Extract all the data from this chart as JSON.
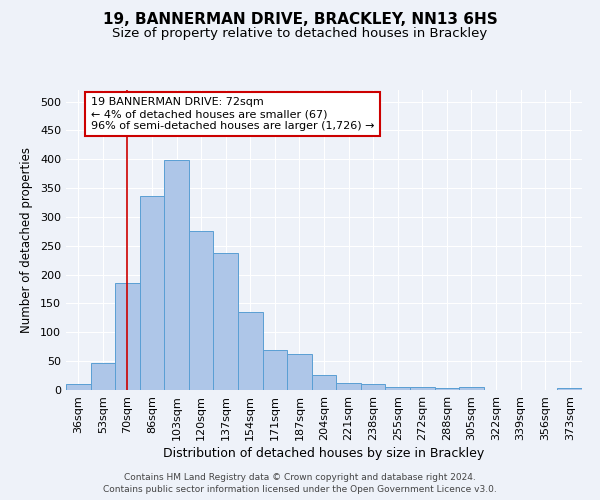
{
  "title1": "19, BANNERMAN DRIVE, BRACKLEY, NN13 6HS",
  "title2": "Size of property relative to detached houses in Brackley",
  "xlabel": "Distribution of detached houses by size in Brackley",
  "ylabel": "Number of detached properties",
  "footnote1": "Contains HM Land Registry data © Crown copyright and database right 2024.",
  "footnote2": "Contains public sector information licensed under the Open Government Licence v3.0.",
  "categories": [
    "36sqm",
    "53sqm",
    "70sqm",
    "86sqm",
    "103sqm",
    "120sqm",
    "137sqm",
    "154sqm",
    "171sqm",
    "187sqm",
    "204sqm",
    "221sqm",
    "238sqm",
    "255sqm",
    "272sqm",
    "288sqm",
    "305sqm",
    "322sqm",
    "339sqm",
    "356sqm",
    "373sqm"
  ],
  "values": [
    10,
    47,
    185,
    337,
    398,
    275,
    238,
    136,
    70,
    63,
    26,
    13,
    10,
    5,
    5,
    4,
    5,
    0,
    0,
    0,
    4
  ],
  "bar_color": "#aec6e8",
  "bar_edge_color": "#5a9fd4",
  "red_line_index": 2,
  "annotation_text": "19 BANNERMAN DRIVE: 72sqm\n← 4% of detached houses are smaller (67)\n96% of semi-detached houses are larger (1,726) →",
  "annotation_box_color": "#ffffff",
  "annotation_box_edge": "#cc0000",
  "red_line_color": "#cc0000",
  "ylim": [
    0,
    520
  ],
  "yticks": [
    0,
    50,
    100,
    150,
    200,
    250,
    300,
    350,
    400,
    450,
    500
  ],
  "bg_color": "#eef2f9",
  "grid_color": "#ffffff",
  "title1_fontsize": 11,
  "title2_fontsize": 9.5,
  "xlabel_fontsize": 9,
  "ylabel_fontsize": 8.5,
  "tick_fontsize": 8,
  "annotation_fontsize": 8,
  "footnote_fontsize": 6.5
}
